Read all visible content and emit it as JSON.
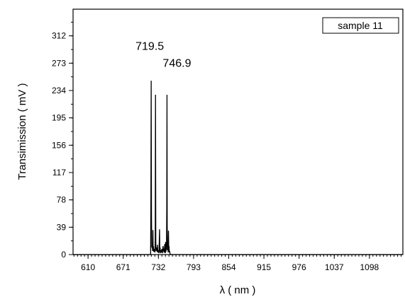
{
  "chart_data": {
    "type": "line",
    "xlabel": "λ ( nm )",
    "ylabel": "Transimission ( mV )",
    "xlim": [
      584,
      1156
    ],
    "ylim": [
      0,
      350
    ],
    "x_ticks": [
      610,
      671,
      732,
      793,
      854,
      915,
      976,
      1037,
      1098
    ],
    "x_tick_labels": [
      "610",
      "671",
      "732",
      "793",
      "854",
      "915",
      "976",
      "1037",
      "1098"
    ],
    "y_ticks": [
      0,
      39,
      78,
      117,
      156,
      195,
      234,
      273,
      312
    ],
    "y_tick_labels": [
      "0",
      "39",
      "78",
      "117",
      "156",
      "195",
      "234",
      "273",
      "312"
    ],
    "grid": false,
    "legend": "top-right",
    "series": [
      {
        "name": "sample 11",
        "color": "#000000",
        "x": [
          584,
          718.5,
          719.0,
          719.5,
          720.0,
          720.5,
          721,
          722,
          722.5,
          723,
          723.5,
          724,
          725,
          726,
          726.5,
          727,
          727.5,
          728,
          729,
          730,
          730.5,
          731,
          732,
          733,
          734,
          734.5,
          735,
          735.5,
          736,
          737,
          738,
          739,
          740,
          741,
          742,
          743,
          743.5,
          744,
          744.5,
          745,
          745.5,
          746,
          746.5,
          746.9,
          747.3,
          747.8,
          748.5,
          749,
          749.5,
          750,
          750.5,
          751,
          751.5,
          752,
          753,
          1156
        ],
        "y": [
          0,
          0,
          80,
          248,
          60,
          10,
          14,
          5,
          35,
          6,
          12,
          4,
          8,
          3,
          20,
          228,
          18,
          5,
          10,
          4,
          14,
          3,
          6,
          2,
          36,
          4,
          10,
          2,
          6,
          3,
          8,
          2,
          12,
          6,
          3,
          15,
          5,
          2,
          18,
          4,
          10,
          7,
          65,
          228,
          40,
          6,
          14,
          3,
          34,
          5,
          12,
          3,
          5,
          2,
          0,
          0
        ]
      }
    ],
    "annotations": [
      {
        "text": "719.5",
        "x": 719.5,
        "y": 292
      },
      {
        "text": "746.9",
        "x": 746.9,
        "y": 268
      }
    ]
  }
}
